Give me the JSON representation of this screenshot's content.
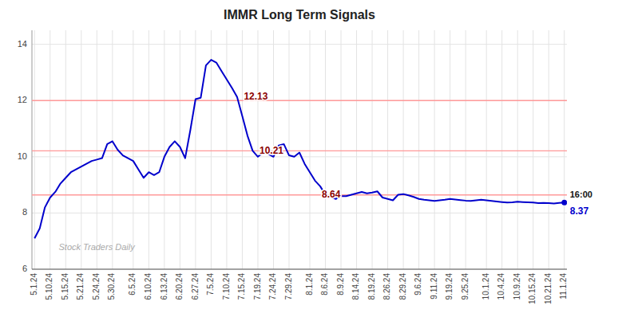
{
  "chart_data": {
    "type": "line",
    "title": "IMMR Long Term Signals",
    "color": "#0000cc",
    "grid": true,
    "ylim": [
      6,
      14.5
    ],
    "yticks": [
      6,
      8,
      10,
      12,
      14
    ],
    "categories": [
      "5.1.24",
      null,
      null,
      "5.10.24",
      null,
      null,
      "5.15.24",
      null,
      null,
      "5.21.24",
      null,
      null,
      "5.24.24",
      null,
      null,
      "5.30.24",
      null,
      null,
      null,
      "6.5.24",
      null,
      null,
      "6.10.24",
      null,
      null,
      "6.13.24",
      null,
      null,
      "6.20.24",
      null,
      null,
      "6.27.24",
      null,
      null,
      "7.5.24",
      null,
      null,
      "7.10.24",
      null,
      null,
      "7.15.24",
      null,
      null,
      "7.19.24",
      null,
      null,
      "7.24.24",
      null,
      null,
      "7.29.24",
      null,
      null,
      null,
      "8.1.24",
      null,
      null,
      "8.6.24",
      null,
      null,
      "8.9.24",
      null,
      null,
      "8.14.24",
      null,
      null,
      "8.19.24",
      null,
      null,
      "8.26.24",
      null,
      null,
      "8.29.24",
      null,
      null,
      "9.6.24",
      null,
      null,
      "9.11.24",
      null,
      null,
      "9.19.24",
      null,
      null,
      "9.25.24",
      null,
      null,
      null,
      "10.1.24",
      null,
      null,
      "10.4.24",
      null,
      null,
      "10.9.24",
      null,
      null,
      "10.15.24",
      null,
      null,
      "10.21.24",
      null,
      null,
      "11.1.24"
    ],
    "values": [
      7.1,
      7.45,
      8.2,
      8.55,
      8.75,
      9.05,
      9.25,
      9.45,
      9.55,
      9.65,
      9.75,
      9.85,
      9.9,
      9.95,
      10.45,
      10.55,
      10.25,
      10.05,
      9.95,
      9.85,
      9.55,
      9.25,
      9.45,
      9.35,
      9.45,
      10.0,
      10.35,
      10.55,
      10.35,
      9.95,
      10.95,
      12.05,
      12.1,
      13.25,
      13.45,
      13.35,
      13.05,
      12.75,
      12.45,
      12.13,
      11.45,
      10.75,
      10.21,
      10.0,
      10.15,
      10.1,
      10.0,
      10.4,
      10.45,
      10.05,
      10.0,
      10.15,
      9.75,
      9.45,
      9.15,
      8.95,
      8.65,
      8.57,
      8.5,
      8.6,
      8.6,
      8.65,
      8.7,
      8.75,
      8.7,
      8.73,
      8.77,
      8.55,
      8.5,
      8.45,
      8.65,
      8.67,
      8.63,
      8.57,
      8.5,
      8.47,
      8.45,
      8.43,
      8.45,
      8.47,
      8.5,
      8.48,
      8.46,
      8.44,
      8.43,
      8.45,
      8.47,
      8.45,
      8.43,
      8.41,
      8.39,
      8.37,
      8.38,
      8.4,
      8.39,
      8.38,
      8.37,
      8.35,
      8.36,
      8.35,
      8.34,
      8.36,
      8.37
    ],
    "hlines": [
      {
        "value": 8.64,
        "color": "#ff9999"
      },
      {
        "value": 10.21,
        "color": "#ff9999"
      },
      {
        "value": 12.0,
        "color": "#ff9999"
      }
    ],
    "annotations": [
      {
        "text": "12.13",
        "x": 40,
        "y": 12.13,
        "color": "#8b0000"
      },
      {
        "text": "10.21",
        "x": 43,
        "y": 10.21,
        "color": "#8b0000"
      },
      {
        "text": "8.64",
        "x": 55,
        "y": 8.64,
        "color": "#8b0000"
      },
      {
        "text": "16:00",
        "x": 102,
        "y": 8.37,
        "color": "#111111"
      },
      {
        "text": "8.37",
        "x": 102,
        "y": 8.37,
        "color": "#0000cc"
      },
      {
        "text": "Stock Traders Daily",
        "color": "#aaaaaa"
      }
    ]
  }
}
